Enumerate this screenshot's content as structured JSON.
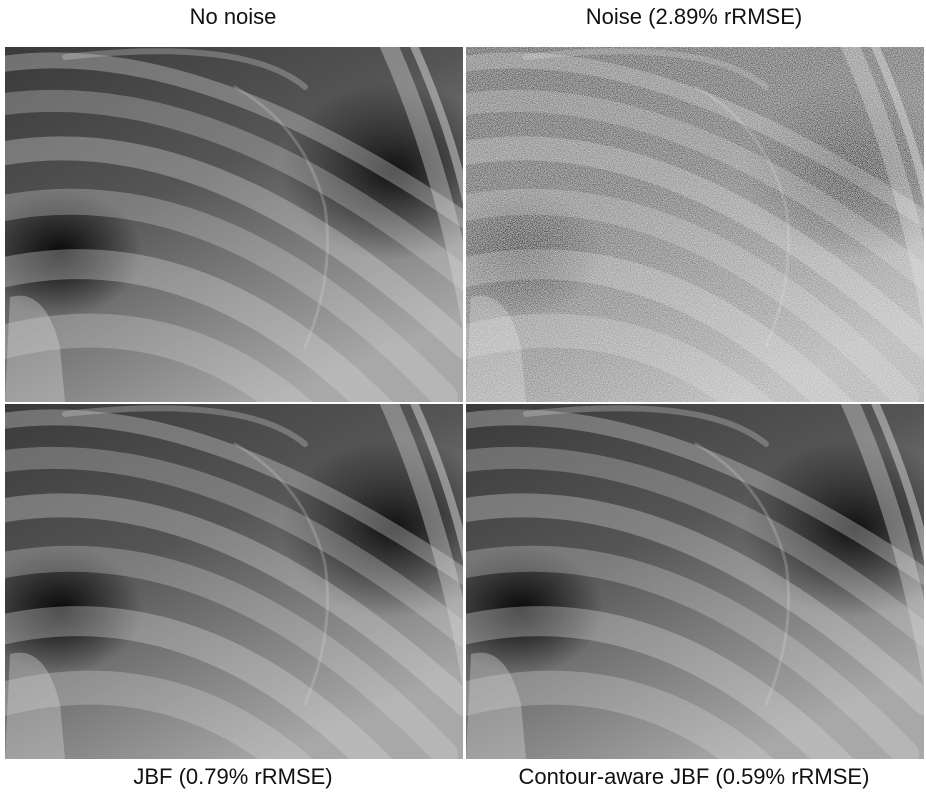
{
  "panels": [
    {
      "caption": "No noise"
    },
    {
      "caption": "Noise (2.89% rRMSE)"
    },
    {
      "caption": "JBF (0.79% rRMSE)"
    },
    {
      "caption": "Contour-aware JBF (0.59% rRMSE)"
    }
  ]
}
